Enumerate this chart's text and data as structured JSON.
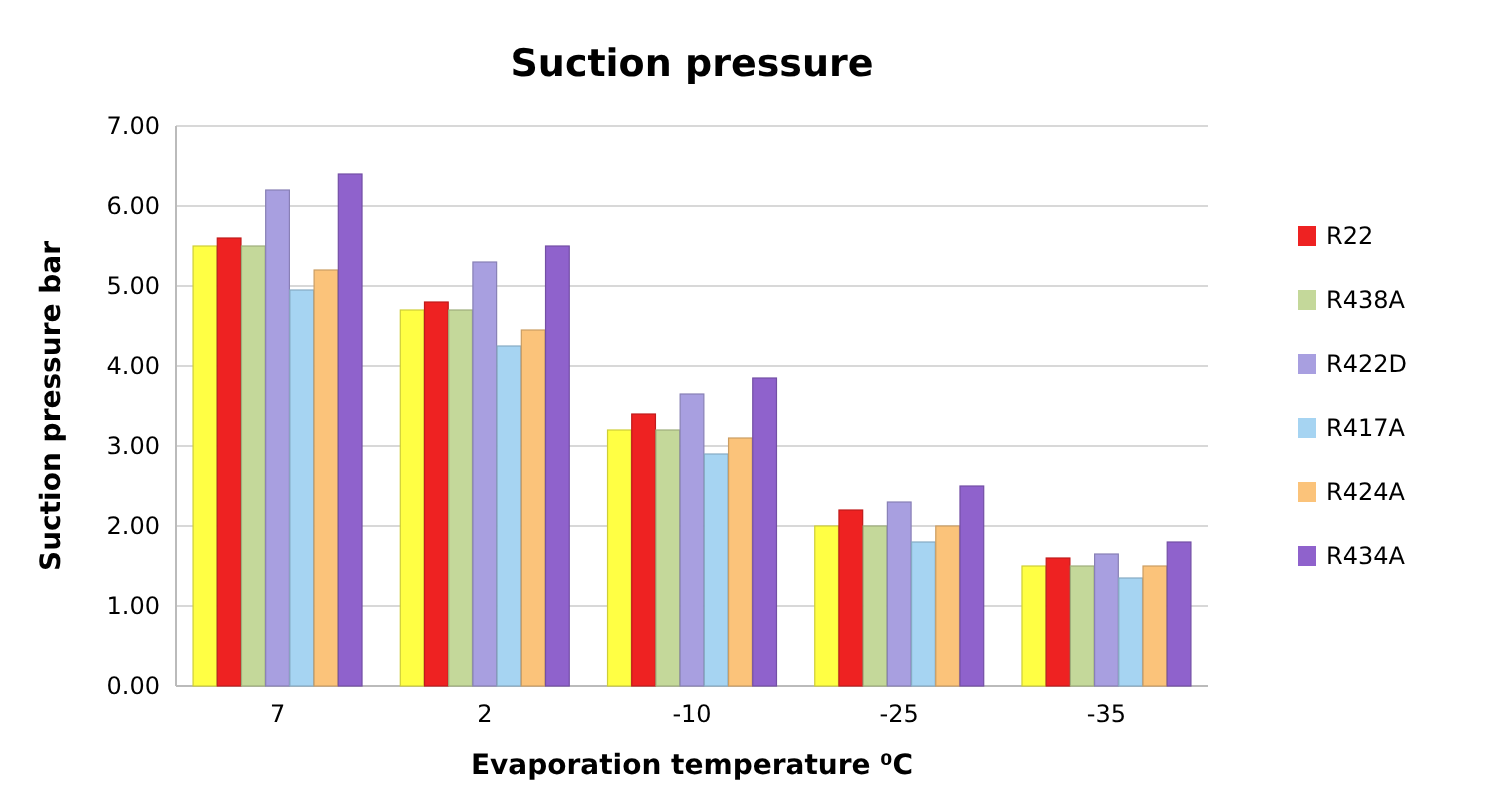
{
  "chart_data": {
    "type": "bar",
    "title": "Suction pressure",
    "xlabel": "Evaporation temperature ⁰C",
    "ylabel": "Suction pressure bar",
    "categories": [
      "7",
      "2",
      "-10",
      "-25",
      "-35"
    ],
    "series": [
      {
        "color": "#ffff44",
        "values": [
          5.5,
          4.7,
          3.2,
          2.0,
          1.5
        ]
      },
      {
        "name": "R22",
        "color": "#ee2222",
        "values": [
          5.6,
          4.8,
          3.4,
          2.2,
          1.6
        ]
      },
      {
        "name": "R438A",
        "color": "#c4d89a",
        "values": [
          5.5,
          4.7,
          3.2,
          2.0,
          1.5
        ]
      },
      {
        "name": "R422D",
        "color": "#a89fe0",
        "values": [
          6.2,
          5.3,
          3.65,
          2.3,
          1.65
        ]
      },
      {
        "name": "R417A",
        "color": "#a6d4f2",
        "values": [
          4.95,
          4.25,
          2.9,
          1.8,
          1.35
        ]
      },
      {
        "name": "R424A",
        "color": "#fbc37a",
        "values": [
          5.2,
          4.45,
          3.1,
          2.0,
          1.5
        ]
      },
      {
        "name": "R434A",
        "color": "#8f62cc",
        "values": [
          6.4,
          5.5,
          3.85,
          2.5,
          1.8
        ]
      }
    ],
    "ylim": [
      0,
      7
    ],
    "yticks": [
      {
        "value": 0,
        "label": "0.00"
      },
      {
        "value": 1,
        "label": "1.00"
      },
      {
        "value": 2,
        "label": "2.00"
      },
      {
        "value": 3,
        "label": "3.00"
      },
      {
        "value": 4,
        "label": "4.00"
      },
      {
        "value": 5,
        "label": "5.00"
      },
      {
        "value": 6,
        "label": "6.00"
      },
      {
        "value": 7,
        "label": "7.00"
      }
    ],
    "grid": "y",
    "legend": "right"
  }
}
